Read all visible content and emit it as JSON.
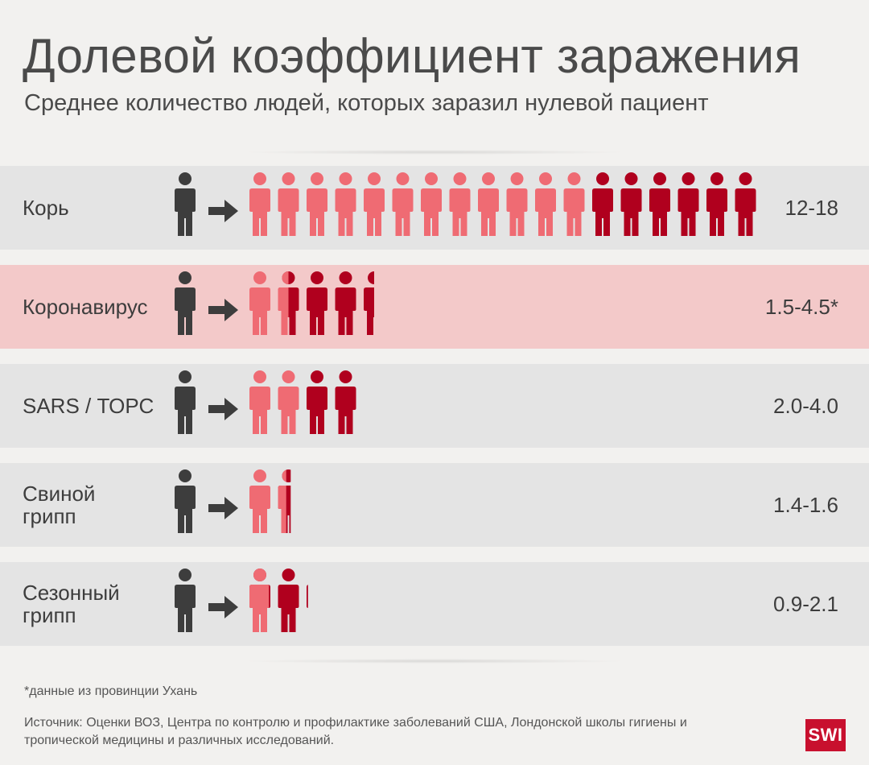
{
  "header": {
    "title": "Долевой коэффициент заражения",
    "subtitle": "Среднее количество людей, которых заразил нулевой пациент"
  },
  "chart_data": {
    "type": "pictogram",
    "title": "Долевой коэффициент заражения",
    "subtitle": "Среднее количество людей, которых заразил нулевой пациент",
    "rows": [
      {
        "label": "Корь",
        "value_text": "12-18",
        "low": 12,
        "high": 18,
        "highlight": false
      },
      {
        "label": "Коронавирус",
        "value_text": "1.5-4.5*",
        "low": 1.5,
        "high": 4.5,
        "highlight": true
      },
      {
        "label": "SARS / ТОРС",
        "value_text": "2.0-4.0",
        "low": 2.0,
        "high": 4.0,
        "highlight": false
      },
      {
        "label": "Свиной\nгрипп",
        "value_text": "1.4-1.6",
        "low": 1.4,
        "high": 1.6,
        "highlight": false
      },
      {
        "label": "Сезонный\nгрипп",
        "value_text": "0.9-2.1",
        "low": 0.9,
        "high": 2.1,
        "highlight": false
      }
    ],
    "colors": {
      "patient_zero": "#3d3d3d",
      "arrow": "#3d3d3d",
      "low_range": "#ef6b73",
      "high_range": "#b0001e",
      "highlight_row": "#f3c9c9",
      "row": "#e4e4e4"
    }
  },
  "footer": {
    "footnote": "*данные из провинции Ухань",
    "source": "Источник: Оценки ВОЗ, Центра по контролю и профилактике заболеваний США, Лондонской школы гигиены и тропической медицины и различных исследований.",
    "logo": "SWI"
  }
}
